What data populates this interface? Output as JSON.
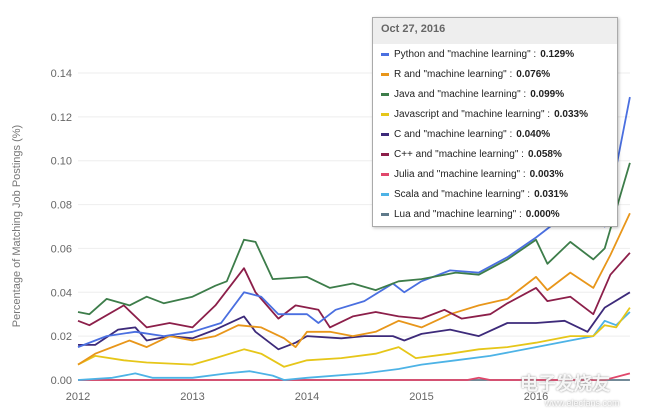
{
  "chart_data": {
    "type": "line",
    "title": "",
    "xlabel": "",
    "ylabel": "Percentage of Matching Job Postings (%)",
    "xlim": [
      2012,
      2016.85
    ],
    "ylim": [
      0,
      0.14
    ],
    "x_ticks": [
      "2012",
      "2013",
      "2014",
      "2015",
      "2016"
    ],
    "y_ticks": [
      "0.00",
      "0.02",
      "0.04",
      "0.06",
      "0.08",
      "0.10",
      "0.12",
      "0.14"
    ],
    "grid": true,
    "tooltip": {
      "date": "Oct 27, 2016",
      "rows": [
        {
          "label": "Python and \"machine learning\" :",
          "value": "0.129%"
        },
        {
          "label": "R and \"machine learning\" :",
          "value": "0.076%"
        },
        {
          "label": "Java and \"machine learning\" :",
          "value": "0.099%"
        },
        {
          "label": "Javascript and \"machine learning\" :",
          "value": "0.033%"
        },
        {
          "label": "C and \"machine learning\" :",
          "value": "0.040%"
        },
        {
          "label": "C++ and \"machine learning\" :",
          "value": "0.058%"
        },
        {
          "label": "Julia and \"machine learning\" :",
          "value": "0.003%"
        },
        {
          "label": "Scala and \"machine learning\" :",
          "value": "0.031%"
        },
        {
          "label": "Lua and \"machine learning\" :",
          "value": "0.000%"
        }
      ]
    },
    "series": [
      {
        "name": "Lua",
        "color": "#5f7a8a",
        "points": [
          [
            2012,
            0
          ],
          [
            2016.82,
            0
          ]
        ]
      },
      {
        "name": "Julia",
        "color": "#e0476b",
        "points": [
          [
            2012,
            0
          ],
          [
            2015.4,
            0
          ],
          [
            2015.5,
            0.001
          ],
          [
            2015.6,
            0
          ],
          [
            2016.6,
            0
          ],
          [
            2016.82,
            0.003
          ]
        ]
      },
      {
        "name": "Scala",
        "color": "#4db3e6",
        "points": [
          [
            2012,
            0
          ],
          [
            2012.3,
            0.001
          ],
          [
            2012.5,
            0.003
          ],
          [
            2012.65,
            0.001
          ],
          [
            2013,
            0.001
          ],
          [
            2013.3,
            0.003
          ],
          [
            2013.5,
            0.004
          ],
          [
            2013.7,
            0.002
          ],
          [
            2013.8,
            0
          ],
          [
            2014,
            0.001
          ],
          [
            2014.5,
            0.003
          ],
          [
            2014.8,
            0.005
          ],
          [
            2015,
            0.007
          ],
          [
            2015.3,
            0.009
          ],
          [
            2015.6,
            0.011
          ],
          [
            2016,
            0.015
          ],
          [
            2016.3,
            0.018
          ],
          [
            2016.5,
            0.02
          ],
          [
            2016.6,
            0.027
          ],
          [
            2016.7,
            0.025
          ],
          [
            2016.82,
            0.031
          ]
        ]
      },
      {
        "name": "Javascript",
        "color": "#e6c619",
        "points": [
          [
            2012,
            0.007
          ],
          [
            2012.15,
            0.011
          ],
          [
            2012.4,
            0.009
          ],
          [
            2012.6,
            0.008
          ],
          [
            2013,
            0.007
          ],
          [
            2013.2,
            0.01
          ],
          [
            2013.45,
            0.014
          ],
          [
            2013.6,
            0.012
          ],
          [
            2013.8,
            0.006
          ],
          [
            2014,
            0.009
          ],
          [
            2014.3,
            0.01
          ],
          [
            2014.6,
            0.012
          ],
          [
            2014.8,
            0.015
          ],
          [
            2014.95,
            0.01
          ],
          [
            2015.25,
            0.012
          ],
          [
            2015.5,
            0.014
          ],
          [
            2015.75,
            0.015
          ],
          [
            2016,
            0.017
          ],
          [
            2016.3,
            0.02
          ],
          [
            2016.5,
            0.02
          ],
          [
            2016.6,
            0.025
          ],
          [
            2016.7,
            0.024
          ],
          [
            2016.82,
            0.033
          ]
        ]
      },
      {
        "name": "C",
        "color": "#3d2a7a",
        "points": [
          [
            2012,
            0.016
          ],
          [
            2012.15,
            0.016
          ],
          [
            2012.35,
            0.023
          ],
          [
            2012.5,
            0.024
          ],
          [
            2012.6,
            0.018
          ],
          [
            2012.8,
            0.02
          ],
          [
            2013,
            0.019
          ],
          [
            2013.2,
            0.023
          ],
          [
            2013.45,
            0.029
          ],
          [
            2013.55,
            0.022
          ],
          [
            2013.75,
            0.014
          ],
          [
            2013.9,
            0.017
          ],
          [
            2014,
            0.02
          ],
          [
            2014.3,
            0.019
          ],
          [
            2014.5,
            0.02
          ],
          [
            2014.75,
            0.02
          ],
          [
            2014.85,
            0.018
          ],
          [
            2015,
            0.021
          ],
          [
            2015.25,
            0.023
          ],
          [
            2015.5,
            0.02
          ],
          [
            2015.75,
            0.026
          ],
          [
            2016,
            0.026
          ],
          [
            2016.25,
            0.027
          ],
          [
            2016.45,
            0.022
          ],
          [
            2016.6,
            0.033
          ],
          [
            2016.82,
            0.04
          ]
        ]
      },
      {
        "name": "R",
        "color": "#e8961a",
        "points": [
          [
            2012,
            0.007
          ],
          [
            2012.15,
            0.012
          ],
          [
            2012.3,
            0.015
          ],
          [
            2012.45,
            0.018
          ],
          [
            2012.6,
            0.015
          ],
          [
            2012.8,
            0.02
          ],
          [
            2013,
            0.018
          ],
          [
            2013.2,
            0.02
          ],
          [
            2013.4,
            0.025
          ],
          [
            2013.6,
            0.024
          ],
          [
            2013.8,
            0.019
          ],
          [
            2013.9,
            0.015
          ],
          [
            2014,
            0.022
          ],
          [
            2014.2,
            0.022
          ],
          [
            2014.4,
            0.02
          ],
          [
            2014.6,
            0.022
          ],
          [
            2014.8,
            0.027
          ],
          [
            2015,
            0.024
          ],
          [
            2015.25,
            0.03
          ],
          [
            2015.5,
            0.034
          ],
          [
            2015.75,
            0.037
          ],
          [
            2016,
            0.047
          ],
          [
            2016.1,
            0.041
          ],
          [
            2016.3,
            0.049
          ],
          [
            2016.5,
            0.042
          ],
          [
            2016.65,
            0.057
          ],
          [
            2016.82,
            0.076
          ]
        ]
      },
      {
        "name": "C++",
        "color": "#8c1f4a",
        "points": [
          [
            2012,
            0.027
          ],
          [
            2012.1,
            0.025
          ],
          [
            2012.4,
            0.034
          ],
          [
            2012.6,
            0.024
          ],
          [
            2012.8,
            0.026
          ],
          [
            2013,
            0.024
          ],
          [
            2013.2,
            0.034
          ],
          [
            2013.45,
            0.051
          ],
          [
            2013.55,
            0.04
          ],
          [
            2013.75,
            0.028
          ],
          [
            2013.9,
            0.034
          ],
          [
            2014.1,
            0.032
          ],
          [
            2014.2,
            0.024
          ],
          [
            2014.4,
            0.029
          ],
          [
            2014.6,
            0.031
          ],
          [
            2014.8,
            0.029
          ],
          [
            2015,
            0.028
          ],
          [
            2015.2,
            0.032
          ],
          [
            2015.35,
            0.028
          ],
          [
            2015.6,
            0.03
          ],
          [
            2015.75,
            0.035
          ],
          [
            2016,
            0.042
          ],
          [
            2016.1,
            0.036
          ],
          [
            2016.3,
            0.038
          ],
          [
            2016.5,
            0.03
          ],
          [
            2016.65,
            0.048
          ],
          [
            2016.82,
            0.058
          ]
        ]
      },
      {
        "name": "Python",
        "color": "#4a6fe0",
        "points": [
          [
            2012,
            0.015
          ],
          [
            2012.25,
            0.02
          ],
          [
            2012.5,
            0.022
          ],
          [
            2012.75,
            0.02
          ],
          [
            2013,
            0.022
          ],
          [
            2013.25,
            0.026
          ],
          [
            2013.45,
            0.04
          ],
          [
            2013.6,
            0.038
          ],
          [
            2013.75,
            0.03
          ],
          [
            2014,
            0.03
          ],
          [
            2014.1,
            0.026
          ],
          [
            2014.25,
            0.032
          ],
          [
            2014.5,
            0.036
          ],
          [
            2014.75,
            0.044
          ],
          [
            2014.85,
            0.04
          ],
          [
            2015,
            0.045
          ],
          [
            2015.25,
            0.05
          ],
          [
            2015.5,
            0.049
          ],
          [
            2015.75,
            0.056
          ],
          [
            2016,
            0.065
          ],
          [
            2016.25,
            0.075
          ],
          [
            2016.5,
            0.08
          ],
          [
            2016.6,
            0.07
          ],
          [
            2016.82,
            0.129
          ]
        ]
      },
      {
        "name": "Java",
        "color": "#3d7d4a",
        "points": [
          [
            2012,
            0.031
          ],
          [
            2012.1,
            0.03
          ],
          [
            2012.25,
            0.037
          ],
          [
            2012.45,
            0.034
          ],
          [
            2012.6,
            0.038
          ],
          [
            2012.75,
            0.035
          ],
          [
            2013,
            0.038
          ],
          [
            2013.2,
            0.043
          ],
          [
            2013.3,
            0.045
          ],
          [
            2013.45,
            0.064
          ],
          [
            2013.55,
            0.063
          ],
          [
            2013.7,
            0.046
          ],
          [
            2014,
            0.047
          ],
          [
            2014.2,
            0.042
          ],
          [
            2014.4,
            0.044
          ],
          [
            2014.6,
            0.041
          ],
          [
            2014.8,
            0.045
          ],
          [
            2015,
            0.046
          ],
          [
            2015.3,
            0.049
          ],
          [
            2015.5,
            0.048
          ],
          [
            2015.75,
            0.055
          ],
          [
            2016,
            0.064
          ],
          [
            2016.1,
            0.053
          ],
          [
            2016.3,
            0.063
          ],
          [
            2016.5,
            0.055
          ],
          [
            2016.6,
            0.06
          ],
          [
            2016.82,
            0.099
          ]
        ]
      }
    ],
    "legend_colors": [
      "#4a6fe0",
      "#e8961a",
      "#3d7d4a",
      "#e6c619",
      "#3d2a7a",
      "#8c1f4a",
      "#e0476b",
      "#4db3e6",
      "#5f7a8a"
    ]
  },
  "watermark": {
    "main": "电子发烧友",
    "url": "www.elecfans.com"
  }
}
